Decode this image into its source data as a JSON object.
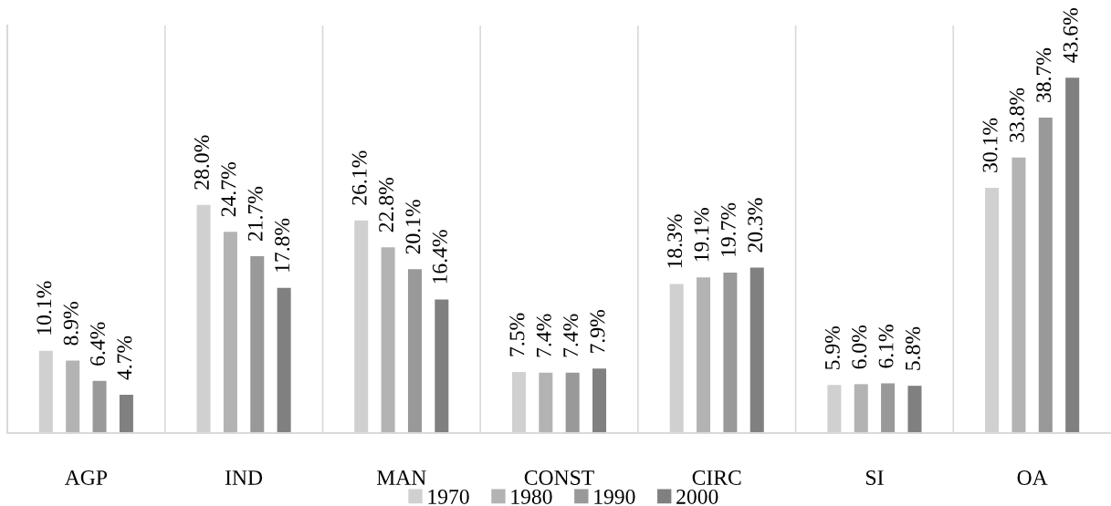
{
  "chart_data": {
    "type": "bar",
    "categories": [
      "AGP",
      "IND",
      "MAN",
      "CONST",
      "CIRC",
      "SI",
      "OA"
    ],
    "series": [
      {
        "name": "1970",
        "color": "#d0d0d0",
        "values": [
          10.1,
          28.0,
          26.1,
          7.5,
          18.3,
          5.9,
          30.1
        ],
        "value_labels": [
          "10.1%",
          "28.0%",
          "26.1%",
          "7.5%",
          "18.3%",
          "5.9%",
          "30.1%"
        ]
      },
      {
        "name": "1980",
        "color": "#b3b3b3",
        "values": [
          8.9,
          24.7,
          22.8,
          7.4,
          19.1,
          6.0,
          33.8
        ],
        "value_labels": [
          "8.9%",
          "24.7%",
          "22.8%",
          "7.4%",
          "19.1%",
          "6.0%",
          "33.8%"
        ]
      },
      {
        "name": "1990",
        "color": "#999999",
        "values": [
          6.4,
          21.7,
          20.1,
          7.4,
          19.7,
          6.1,
          38.7
        ],
        "value_labels": [
          "6.4%",
          "21.7%",
          "20.1%",
          "7.4%",
          "19.7%",
          "6.1%",
          "38.7%"
        ]
      },
      {
        "name": "2000",
        "color": "#808080",
        "values": [
          4.7,
          17.8,
          16.4,
          7.9,
          20.3,
          5.8,
          43.6
        ],
        "value_labels": [
          "4.7%",
          "17.8%",
          "16.4%",
          "7.9%",
          "20.3%",
          "5.8%",
          "43.6%"
        ]
      }
    ],
    "ylim": [
      0,
      50
    ],
    "tick_labels": "x",
    "grid": "x",
    "legend": "bottom"
  }
}
